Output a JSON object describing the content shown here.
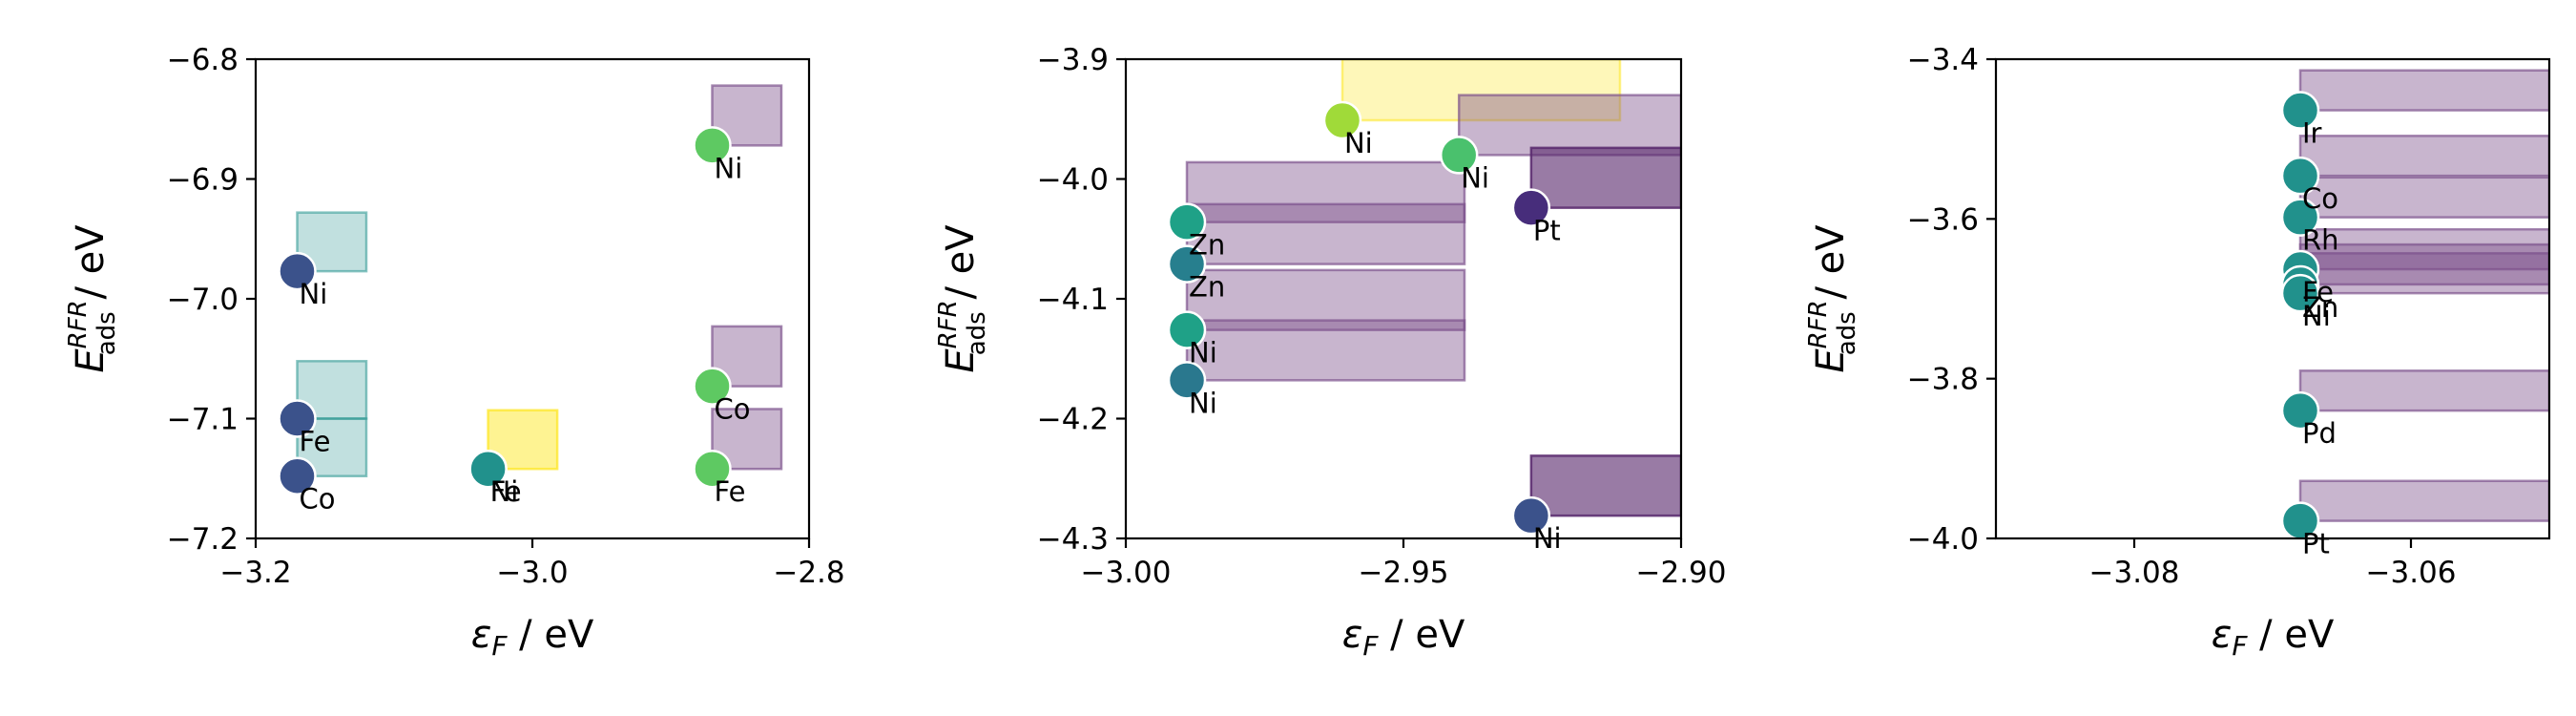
{
  "chart_data": [
    {
      "type": "scatter",
      "xlabel": {
        "symbol": "ε",
        "sub": "F",
        "unit": " / eV"
      },
      "ylabel": {
        "symbol": "E",
        "sup": "RFR",
        "sub": "ads",
        "unit": " / eV"
      },
      "xlim": [
        -3.2,
        -2.8
      ],
      "ylim": [
        -7.2,
        -6.8
      ],
      "xticks": [
        -3.2,
        -3.0,
        -2.8
      ],
      "xtick_labels": [
        "−3.2",
        "−3.0",
        "−2.8"
      ],
      "yticks": [
        -7.2,
        -7.1,
        -7.0,
        -6.9,
        -6.8
      ],
      "ytick_labels": [
        "−7.2",
        "−7.1",
        "−7.0",
        "−6.9",
        "−6.8"
      ],
      "boxes": [
        {
          "x0": -3.17,
          "x1": -3.12,
          "y0": -6.977,
          "y1": -6.928,
          "color": "#21918c",
          "opacity": 0.28
        },
        {
          "x0": -3.17,
          "x1": -3.12,
          "y0": -7.1,
          "y1": -7.052,
          "color": "#21918c",
          "opacity": 0.28
        },
        {
          "x0": -3.17,
          "x1": -3.12,
          "y0": -7.148,
          "y1": -7.1,
          "color": "#21918c",
          "opacity": 0.28
        },
        {
          "x0": -3.032,
          "x1": -2.982,
          "y0": -7.142,
          "y1": -7.093,
          "color": "#fde725",
          "opacity": 0.5
        },
        {
          "x0": -2.87,
          "x1": -2.82,
          "y0": -6.872,
          "y1": -6.822,
          "color": "#7b4f8a",
          "opacity": 0.42
        },
        {
          "x0": -2.87,
          "x1": -2.82,
          "y0": -7.073,
          "y1": -7.023,
          "color": "#7b4f8a",
          "opacity": 0.42
        },
        {
          "x0": -2.87,
          "x1": -2.82,
          "y0": -7.142,
          "y1": -7.092,
          "color": "#7b4f8a",
          "opacity": 0.42
        }
      ],
      "points": [
        {
          "x": -3.17,
          "y": -6.977,
          "label": "Ni",
          "color": "#3b528b"
        },
        {
          "x": -3.17,
          "y": -7.1,
          "label": "Fe",
          "color": "#3b528b"
        },
        {
          "x": -3.17,
          "y": -7.148,
          "label": "Co",
          "color": "#3b528b"
        },
        {
          "x": -3.032,
          "y": -7.142,
          "label": "Fe",
          "color": "#21918c"
        },
        {
          "x": -3.032,
          "y": -7.142,
          "label": "Ni",
          "color": "#21918c"
        },
        {
          "x": -2.87,
          "y": -6.872,
          "label": "Ni",
          "color": "#5ec962"
        },
        {
          "x": -2.87,
          "y": -7.073,
          "label": "Co",
          "color": "#5ec962"
        },
        {
          "x": -2.87,
          "y": -7.142,
          "label": "Fe",
          "color": "#5ec962"
        }
      ]
    },
    {
      "type": "scatter",
      "xlabel": {
        "symbol": "ε",
        "sub": "F",
        "unit": " / eV"
      },
      "ylabel": {
        "symbol": "E",
        "sup": "RFR",
        "sub": "ads",
        "unit": " / eV"
      },
      "xlim": [
        -3.0,
        -2.9
      ],
      "ylim": [
        -4.3,
        -3.9
      ],
      "xticks": [
        -3.0,
        -2.95,
        -2.9
      ],
      "xtick_labels": [
        "−3.00",
        "−2.95",
        "−2.90"
      ],
      "yticks": [
        -4.3,
        -4.2,
        -4.1,
        -4.0,
        -3.9
      ],
      "ytick_labels": [
        "−4.3",
        "−4.2",
        "−4.1",
        "−4.0",
        "−3.9"
      ],
      "boxes": [
        {
          "x0": -2.961,
          "x1": -2.911,
          "y0": -3.951,
          "y1": -3.9,
          "color": "#fde725",
          "opacity": 0.32
        },
        {
          "x0": -2.94,
          "x1": -2.9,
          "y0": -3.98,
          "y1": -3.93,
          "color": "#7b4f8a",
          "opacity": 0.42
        },
        {
          "x0": -2.927,
          "x1": -2.9,
          "y0": -4.024,
          "y1": -3.974,
          "color": "#5a2a6e",
          "opacity": 0.62
        },
        {
          "x0": -2.989,
          "x1": -2.939,
          "y0": -4.036,
          "y1": -3.986,
          "color": "#7b4f8a",
          "opacity": 0.42
        },
        {
          "x0": -2.989,
          "x1": -2.939,
          "y0": -4.071,
          "y1": -4.021,
          "color": "#7b4f8a",
          "opacity": 0.42
        },
        {
          "x0": -2.989,
          "x1": -2.939,
          "y0": -4.126,
          "y1": -4.076,
          "color": "#7b4f8a",
          "opacity": 0.42
        },
        {
          "x0": -2.989,
          "x1": -2.939,
          "y0": -4.168,
          "y1": -4.118,
          "color": "#7b4f8a",
          "opacity": 0.42
        },
        {
          "x0": -2.927,
          "x1": -2.9,
          "y0": -4.281,
          "y1": -4.231,
          "color": "#5a2a6e",
          "opacity": 0.62
        }
      ],
      "points": [
        {
          "x": -2.961,
          "y": -3.951,
          "label": "Ni",
          "color": "#a0da39"
        },
        {
          "x": -2.94,
          "y": -3.98,
          "label": "Ni",
          "color": "#4ac16d"
        },
        {
          "x": -2.927,
          "y": -4.024,
          "label": "Pt",
          "color": "#472d7b"
        },
        {
          "x": -2.989,
          "y": -4.036,
          "label": "Zn",
          "color": "#1fa187"
        },
        {
          "x": -2.989,
          "y": -4.071,
          "label": "Zn",
          "color": "#277f8e"
        },
        {
          "x": -2.989,
          "y": -4.126,
          "label": "Ni",
          "color": "#1fa187"
        },
        {
          "x": -2.989,
          "y": -4.168,
          "label": "Ni",
          "color": "#2a788e"
        },
        {
          "x": -2.927,
          "y": -4.281,
          "label": "Ni",
          "color": "#3b528b"
        }
      ]
    },
    {
      "type": "scatter",
      "xlabel": {
        "symbol": "ε",
        "sub": "F",
        "unit": " / eV"
      },
      "ylabel": {
        "symbol": "E",
        "sup": "RFR",
        "sub": "ads",
        "unit": " / eV"
      },
      "xlim": [
        -3.09,
        -3.05
      ],
      "ylim": [
        -4.0,
        -3.4
      ],
      "xticks": [
        -3.08,
        -3.06
      ],
      "xtick_labels": [
        "−3.08",
        "−3.06"
      ],
      "yticks": [
        -4.0,
        -3.8,
        -3.6,
        -3.4
      ],
      "ytick_labels": [
        "−4.0",
        "−3.8",
        "−3.6",
        "−3.4"
      ],
      "boxes": [
        {
          "x0": -3.068,
          "x1": -3.05,
          "y0": -3.464,
          "y1": -3.414,
          "color": "#7b4f8a",
          "opacity": 0.42
        },
        {
          "x0": -3.068,
          "x1": -3.05,
          "y0": -3.546,
          "y1": -3.496,
          "color": "#7b4f8a",
          "opacity": 0.42
        },
        {
          "x0": -3.068,
          "x1": -3.05,
          "y0": -3.598,
          "y1": -3.548,
          "color": "#7b4f8a",
          "opacity": 0.42
        },
        {
          "x0": -3.068,
          "x1": -3.05,
          "y0": -3.663,
          "y1": -3.613,
          "color": "#7b4f8a",
          "opacity": 0.42
        },
        {
          "x0": -3.068,
          "x1": -3.05,
          "y0": -3.682,
          "y1": -3.632,
          "color": "#7b4f8a",
          "opacity": 0.42
        },
        {
          "x0": -3.068,
          "x1": -3.05,
          "y0": -3.693,
          "y1": -3.643,
          "color": "#7b4f8a",
          "opacity": 0.42
        },
        {
          "x0": -3.068,
          "x1": -3.05,
          "y0": -3.84,
          "y1": -3.79,
          "color": "#7b4f8a",
          "opacity": 0.42
        },
        {
          "x0": -3.068,
          "x1": -3.05,
          "y0": -3.978,
          "y1": -3.928,
          "color": "#7b4f8a",
          "opacity": 0.42
        }
      ],
      "points": [
        {
          "x": -3.068,
          "y": -3.464,
          "label": "Ir",
          "color": "#21918c"
        },
        {
          "x": -3.068,
          "y": -3.546,
          "label": "Co",
          "color": "#21918c"
        },
        {
          "x": -3.068,
          "y": -3.598,
          "label": "Rh",
          "color": "#21918c"
        },
        {
          "x": -3.068,
          "y": -3.663,
          "label": "Fe",
          "color": "#21918c"
        },
        {
          "x": -3.068,
          "y": -3.682,
          "label": "Zn",
          "color": "#21918c"
        },
        {
          "x": -3.068,
          "y": -3.693,
          "label": "Ni",
          "color": "#21918c"
        },
        {
          "x": -3.068,
          "y": -3.84,
          "label": "Pd",
          "color": "#21918c"
        },
        {
          "x": -3.068,
          "y": -3.978,
          "label": "Pt",
          "color": "#21918c"
        }
      ]
    }
  ]
}
